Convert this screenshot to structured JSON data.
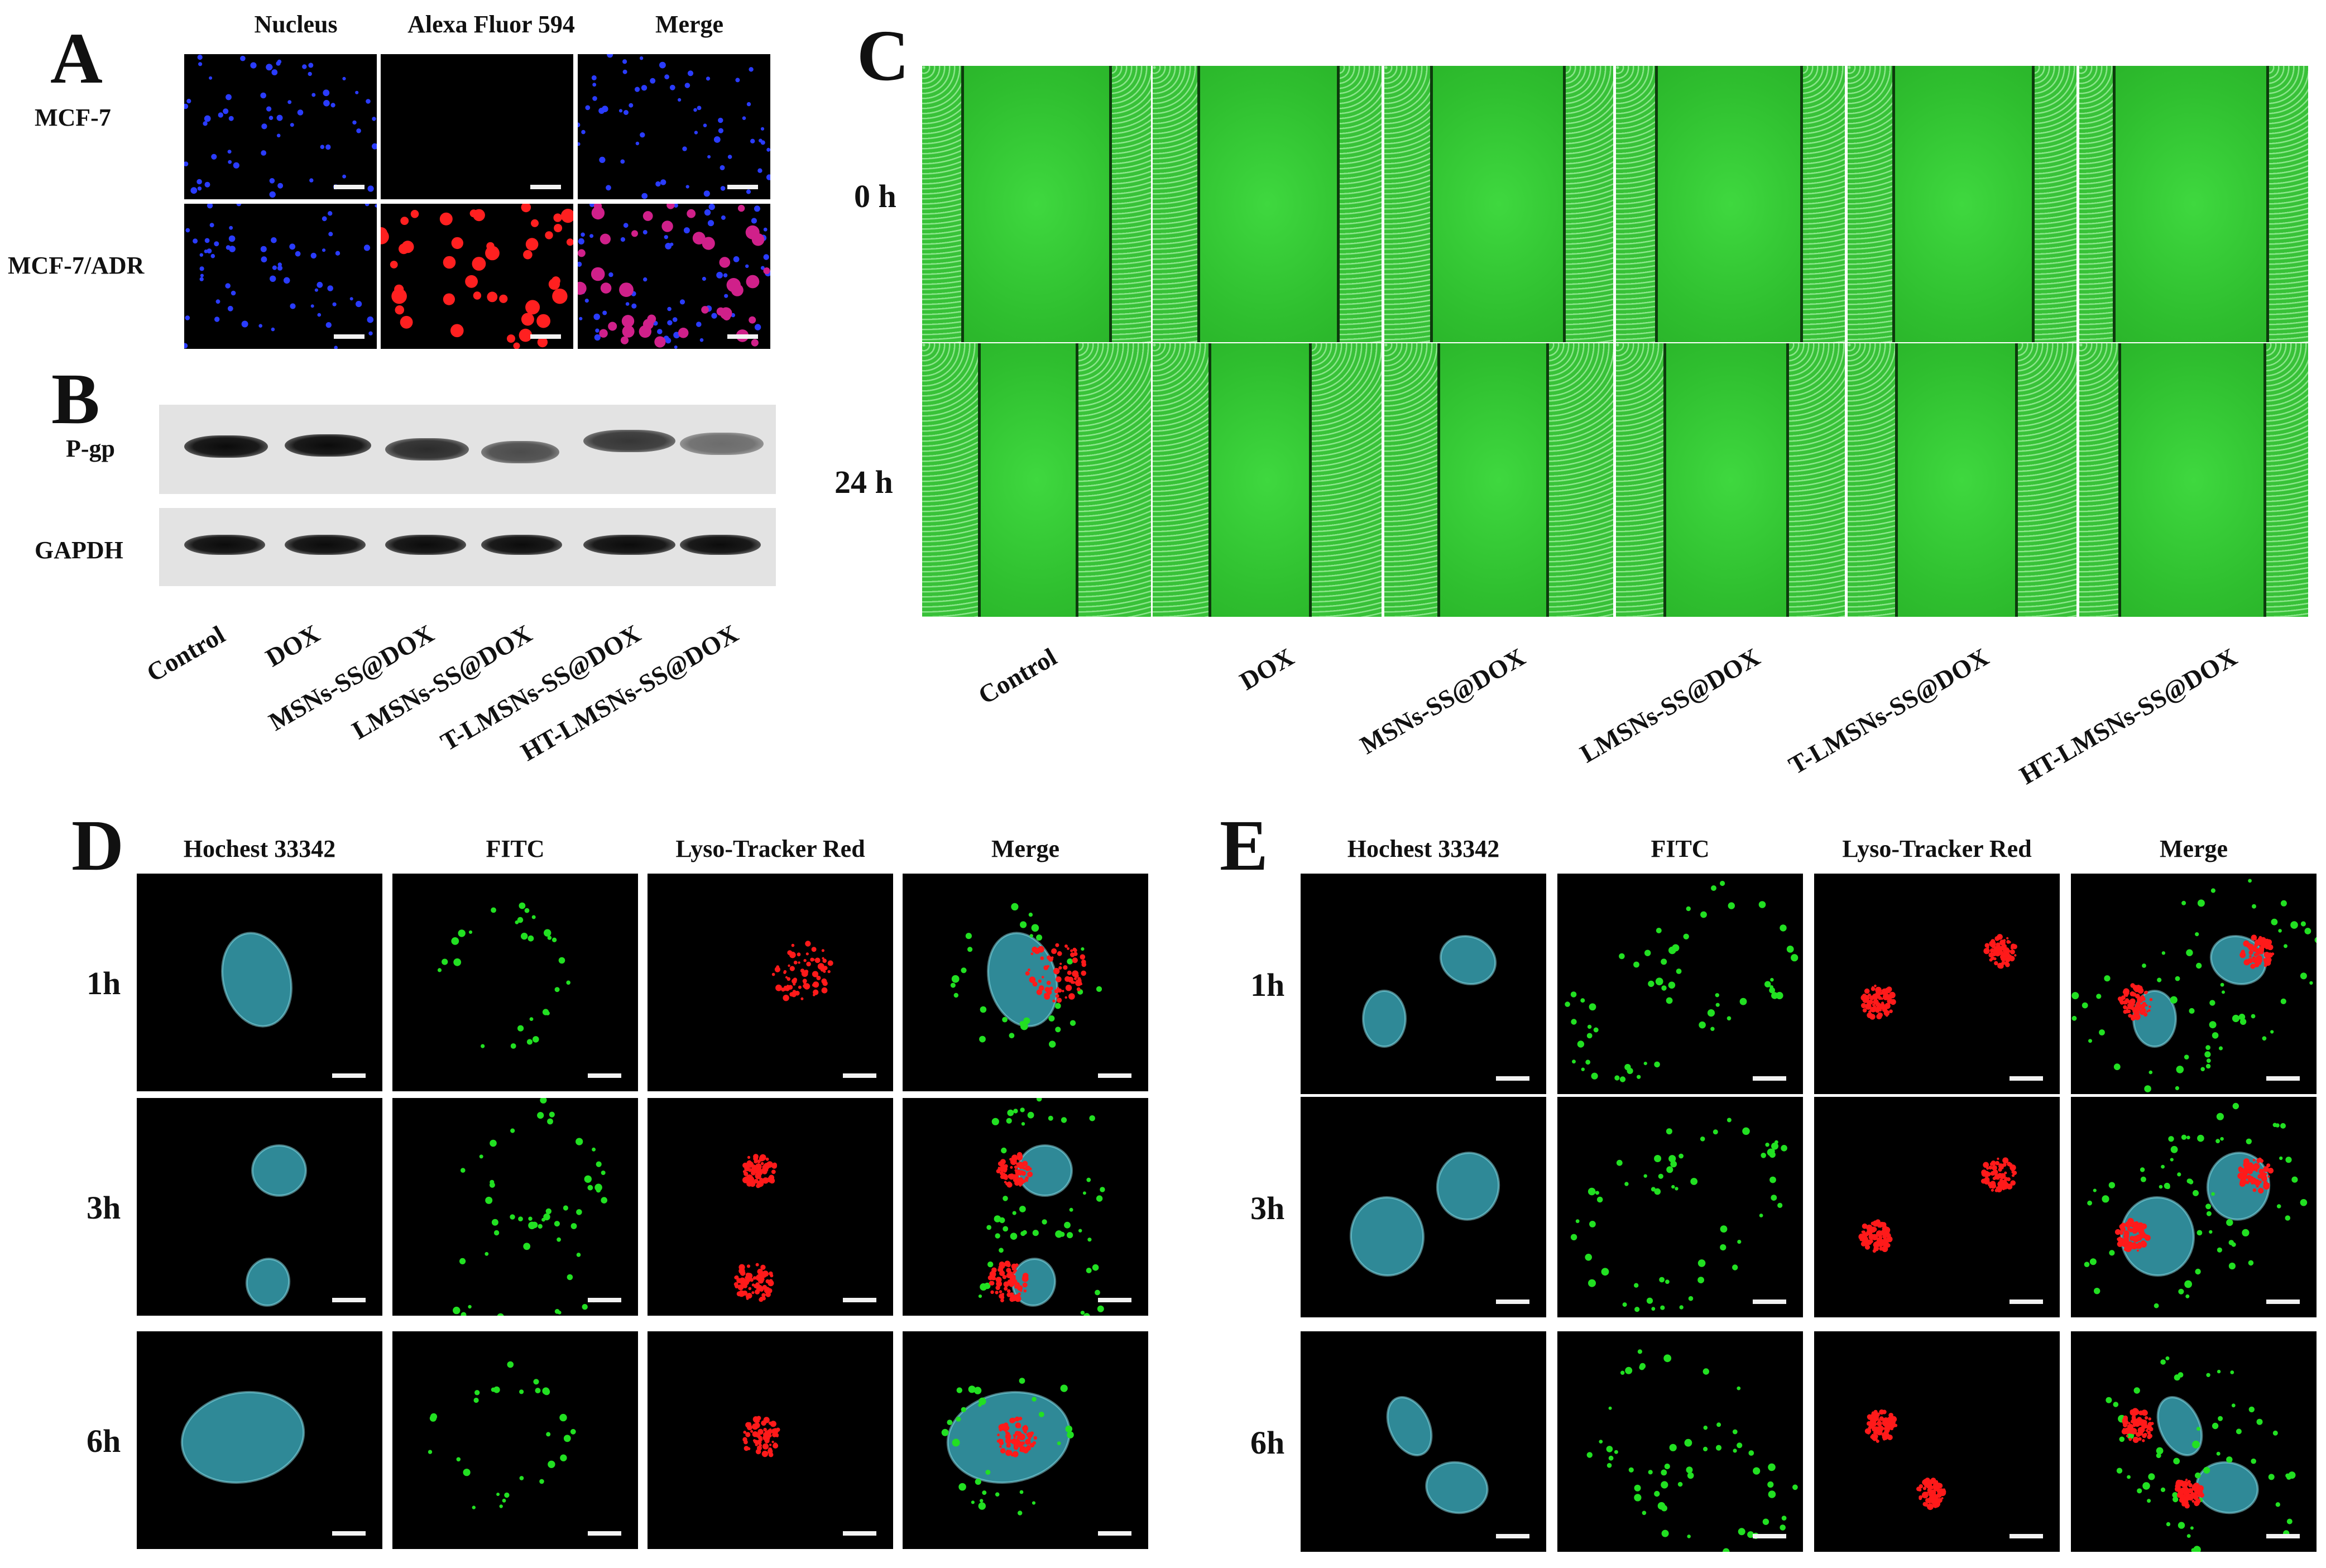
{
  "panel_a": {
    "letter": "A",
    "columns": [
      "Nucleus",
      "Alexa Fluor 594",
      "Merge"
    ],
    "rows": [
      "MCF-7",
      "MCF-7/ADR"
    ]
  },
  "panel_b": {
    "letter": "B",
    "rows": [
      "P-gp",
      "GAPDH"
    ],
    "lanes": [
      "Control",
      "DOX",
      "MSNs-SS@DOX",
      "LMSNs-SS@DOX",
      "T-LMSNs-SS@DOX",
      "HT-LMSNs-SS@DOX"
    ]
  },
  "panel_c": {
    "letter": "C",
    "rows": [
      "0 h",
      "24 h"
    ],
    "groups": [
      "Control",
      "DOX",
      "MSNs-SS@DOX",
      "LMSNs-SS@DOX",
      "T-LMSNs-SS@DOX",
      "HT-LMSNs-SS@DOX"
    ]
  },
  "panel_d": {
    "letter": "D",
    "columns": [
      "Hochest 33342",
      "FITC",
      "Lyso-Tracker Red",
      "Merge"
    ],
    "rows": [
      "1h",
      "3h",
      "6h"
    ]
  },
  "panel_e": {
    "letter": "E",
    "columns": [
      "Hochest 33342",
      "FITC",
      "Lyso-Tracker Red",
      "Merge"
    ],
    "rows": [
      "1h",
      "3h",
      "6h"
    ]
  },
  "colors": {
    "nucleus_blue": "#2a3cff",
    "alexa_red": "#ff2020",
    "hoechst_cyan": "#3fb7c9",
    "fitc_green": "#22e022",
    "lyso_red": "#ff1a1a",
    "wound_green": "#2fbf2f"
  }
}
